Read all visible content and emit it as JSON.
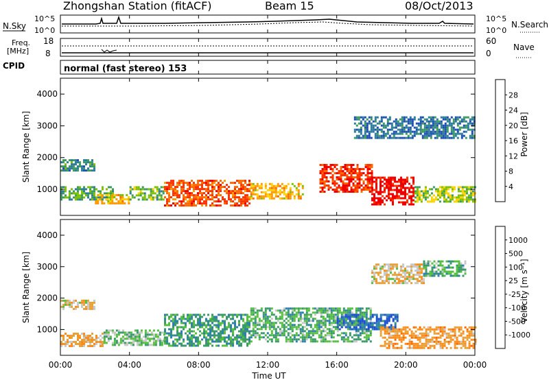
{
  "header": {
    "station": "Zhongshan Station (fitACF)",
    "beam": "Beam 15",
    "date": "08/Oct/2013"
  },
  "noise_panel": {
    "left_label": "N.Sky",
    "right_label": "N.Search",
    "left_ticks": [
      "10^5",
      "10^0"
    ],
    "right_ticks": [
      "10^5",
      "10^0"
    ]
  },
  "freq_panel": {
    "left_label_1": "Freq.",
    "left_label_2": "[MHz]",
    "right_label": "Nave",
    "left_ticks": [
      "18",
      "8"
    ],
    "right_ticks": [
      "60",
      "0"
    ]
  },
  "cpid_panel": {
    "label": "CPID",
    "mode": "normal (fast stereo) 153"
  },
  "time_axis": {
    "ticks": [
      "00:00",
      "04:00",
      "08:00",
      "12:00",
      "16:00",
      "20:00",
      "00:00"
    ],
    "label": "Time UT"
  },
  "power_panel": {
    "ylabel": "Slant Range [km]",
    "yticks": [
      "4000",
      "3000",
      "2000",
      "1000"
    ],
    "colorbar_label": "Power [dB]",
    "colorbar_ticks": [
      "28",
      "24",
      "20",
      "16",
      "12",
      "8",
      "4"
    ],
    "colors": [
      "#0019ff",
      "#1e50b4",
      "#2e7d9a",
      "#3d9c5c",
      "#7cc000",
      "#ffd200",
      "#ff9a00",
      "#ff6a00",
      "#ff3300",
      "#ee0000"
    ]
  },
  "velocity_panel": {
    "ylabel": "Slant Range [km]",
    "yticks": [
      "4000",
      "3000",
      "2000",
      "1000"
    ],
    "colorbar_label": "Velocity [m s⁻¹]",
    "colorbar_ticks": [
      "1000",
      "500",
      "100",
      "25",
      "-25",
      "-100",
      "-500",
      "-1000"
    ],
    "colors": [
      "#1e50d0",
      "#2f80b0",
      "#3a9a6a",
      "#55c040",
      "#c8c8c8",
      "#e8a23a",
      "#ff8c1a",
      "#ff6a00",
      "#ff3000",
      "#ee0000"
    ]
  },
  "chart_data": [
    {
      "type": "heatmap",
      "title": "Zhongshan Station (fitACF) Beam 15 08/Oct/2013",
      "xlabel": "Time UT",
      "ylabel": "Slant Range [km]",
      "xlim": [
        0,
        24
      ],
      "ylim": [
        180,
        4500
      ],
      "quantity": "Power [dB]",
      "color_range": [
        0,
        30
      ],
      "regions": [
        {
          "t": [
            0,
            2
          ],
          "r": [
            1600,
            1950
          ],
          "v": 9
        },
        {
          "t": [
            0,
            3
          ],
          "r": [
            650,
            1100
          ],
          "v": 11
        },
        {
          "t": [
            2,
            4
          ],
          "r": [
            550,
            850
          ],
          "v": 18
        },
        {
          "t": [
            4,
            6
          ],
          "r": [
            700,
            1100
          ],
          "v": 12
        },
        {
          "t": [
            6,
            11
          ],
          "r": [
            500,
            1300
          ],
          "v": 24
        },
        {
          "t": [
            11,
            14
          ],
          "r": [
            700,
            1200
          ],
          "v": 18
        },
        {
          "t": [
            15,
            18
          ],
          "r": [
            900,
            1800
          ],
          "v": 26
        },
        {
          "t": [
            18,
            20.5
          ],
          "r": [
            500,
            1400
          ],
          "v": 29
        },
        {
          "t": [
            20.5,
            24
          ],
          "r": [
            600,
            1100
          ],
          "v": 14
        },
        {
          "t": [
            17,
            24
          ],
          "r": [
            2600,
            3300
          ],
          "v": 7
        }
      ]
    },
    {
      "type": "heatmap",
      "xlabel": "Time UT",
      "ylabel": "Slant Range [km]",
      "xlim": [
        0,
        24
      ],
      "ylim": [
        180,
        4500
      ],
      "quantity": "Velocity [m s⁻¹]",
      "color_range": [
        -1000,
        1000
      ],
      "regions": [
        {
          "t": [
            0,
            2
          ],
          "r": [
            1650,
            1950
          ],
          "v": 0
        },
        {
          "t": [
            0,
            2.5
          ],
          "r": [
            500,
            900
          ],
          "v": 120
        },
        {
          "t": [
            2.5,
            6
          ],
          "r": [
            500,
            1000
          ],
          "v": -300
        },
        {
          "t": [
            6,
            11
          ],
          "r": [
            500,
            1500
          ],
          "v": -500
        },
        {
          "t": [
            11,
            18
          ],
          "r": [
            600,
            1700
          ],
          "v": -400
        },
        {
          "t": [
            16,
            19.5
          ],
          "r": [
            1000,
            1500
          ],
          "v": -800
        },
        {
          "t": [
            18.5,
            24
          ],
          "r": [
            400,
            1100
          ],
          "v": 200
        },
        {
          "t": [
            18,
            21
          ],
          "r": [
            2500,
            3100
          ],
          "v": 0
        },
        {
          "t": [
            21,
            23.5
          ],
          "r": [
            2700,
            3200
          ],
          "v": -400
        }
      ]
    }
  ]
}
